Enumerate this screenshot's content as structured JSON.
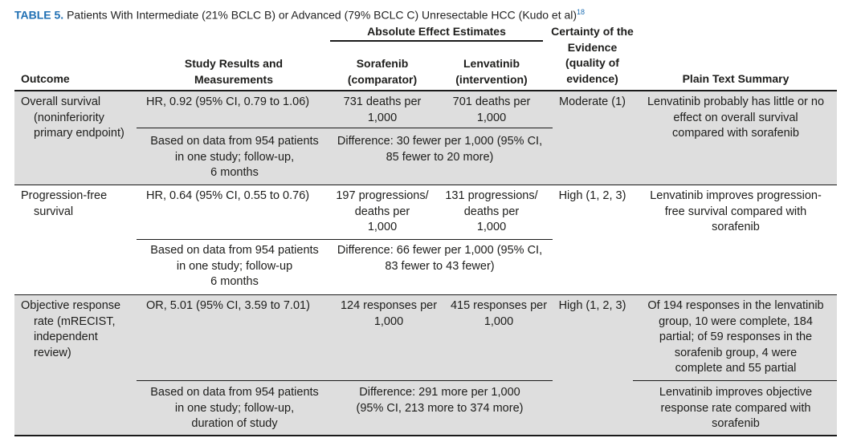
{
  "caption": {
    "label": "TABLE 5.",
    "title": "Patients With Intermediate (21% BCLC B) or Advanced (79% BCLC C) Unresectable HCC (Kudo et al)",
    "ref": "18"
  },
  "headers": {
    "group": "Absolute Effect Estimates",
    "outcome": "Outcome",
    "study": [
      "Study Results and",
      "Measurements"
    ],
    "sorafenib": [
      "Sorafenib",
      "(comparator)"
    ],
    "lenvatinib": [
      "Lenvatinib",
      "(intervention)"
    ],
    "certainty": [
      "Certainty of the",
      "Evidence",
      "(quality of",
      "evidence)"
    ],
    "summary": "Plain Text Summary"
  },
  "rows": [
    {
      "outcome": [
        "Overall survival",
        "(noninferiority",
        "primary endpoint)"
      ],
      "result": "HR, 0.92 (95% CI, 0.79 to 1.06)",
      "sorafenib": [
        "731 deaths per",
        "1,000"
      ],
      "lenvatinib": [
        "701 deaths per",
        "1,000"
      ],
      "certainty": "Moderate (1)",
      "summary": [
        "Lenvatinib probably has little or no",
        "effect on overall survival",
        "compared with sorafenib"
      ],
      "basis": [
        "Based on data from 954 patients",
        "in one study; follow-up,",
        "6 months"
      ],
      "difference": [
        "Difference: 30 fewer per 1,000 (95% CI,",
        "85 fewer to 20 more)"
      ]
    },
    {
      "outcome": [
        "Progression-free",
        "survival"
      ],
      "result": "HR, 0.64 (95% CI, 0.55 to 0.76)",
      "sorafenib": [
        "197 progressions/",
        "deaths per",
        "1,000"
      ],
      "lenvatinib": [
        "131 progressions/",
        "deaths per",
        "1,000"
      ],
      "certainty": "High (1, 2, 3)",
      "summary": [
        "Lenvatinib improves progression-",
        "free survival compared with",
        "sorafenib"
      ],
      "basis": [
        "Based on data from 954 patients",
        "in one study; follow-up",
        "6 months"
      ],
      "difference": [
        "Difference: 66 fewer per 1,000 (95% CI,",
        "83 fewer to 43 fewer)"
      ]
    },
    {
      "outcome": [
        "Objective response",
        "rate (mRECIST,",
        "independent",
        "review)"
      ],
      "result": "OR, 5.01 (95% CI, 3.59 to 7.01)",
      "sorafenib": [
        "124 responses per",
        "1,000"
      ],
      "lenvatinib": [
        "415 responses per",
        "1,000"
      ],
      "certainty": "High (1, 2, 3)",
      "summary": [
        "Of 194 responses in the lenvatinib",
        "group, 10 were complete, 184",
        "partial; of 59 responses in the",
        "sorafenib group, 4 were",
        "complete and 55 partial"
      ],
      "basis": [
        "Based on data from 954 patients",
        "in one study; follow-up,",
        "duration of study"
      ],
      "difference": [
        "Difference: 291 more per 1,000",
        "(95% CI, 213 more to 374 more)"
      ],
      "summary2": [
        "Lenvatinib improves objective",
        "response rate compared with",
        "sorafenib"
      ]
    }
  ]
}
